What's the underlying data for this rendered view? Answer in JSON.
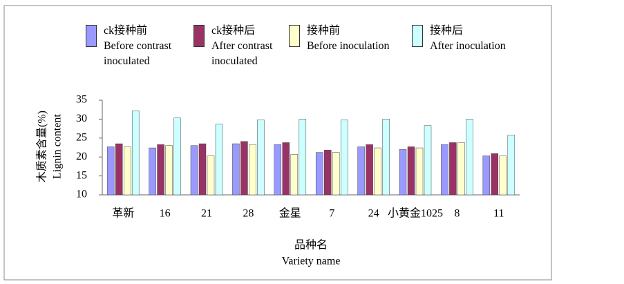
{
  "chart_data": {
    "type": "bar",
    "ylabel": "木质素含量(%)",
    "ylabel_en": "Lignin content",
    "xlabel": "品种名",
    "xlabel_en": "Variety name",
    "categories": [
      "革新",
      "16",
      "21",
      "28",
      "金星",
      "7",
      "24",
      "小黄金1025",
      "8",
      "11"
    ],
    "series": [
      {
        "name": "ck接种前",
        "name_en": "Before contrast inoculated",
        "color": "#9999ff",
        "values": [
          22.7,
          22.4,
          23.0,
          23.5,
          23.3,
          21.2,
          22.7,
          22.0,
          23.3,
          20.3
        ]
      },
      {
        "name": "ck接种后",
        "name_en": "After contrast inoculated",
        "color": "#993366",
        "values": [
          23.5,
          23.3,
          23.5,
          24.1,
          23.8,
          21.8,
          23.3,
          22.7,
          23.8,
          20.9
        ]
      },
      {
        "name": "接种前",
        "name_en": "Before inoculation",
        "color": "#ffffcc",
        "values": [
          22.7,
          23.0,
          20.3,
          23.3,
          20.7,
          21.2,
          22.4,
          22.4,
          23.8,
          20.3
        ]
      },
      {
        "name": "接种后",
        "name_en": "After inoculation",
        "color": "#ccffff",
        "values": [
          32.2,
          30.3,
          28.7,
          29.8,
          30.0,
          29.8,
          30.0,
          28.3,
          30.0,
          25.8
        ]
      }
    ],
    "ylim": [
      10,
      35
    ],
    "yticks": [
      10,
      15,
      20,
      25,
      30,
      35
    ],
    "legend": "top"
  }
}
